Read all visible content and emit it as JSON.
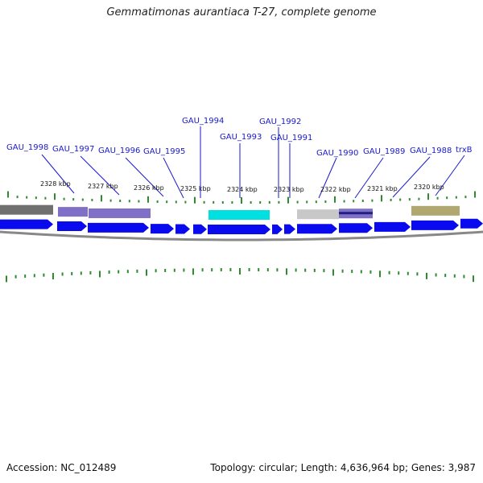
{
  "title": "Gemmatimonas aurantiaca T-27, complete genome",
  "footer": {
    "accession": "Accession: NC_012489",
    "summary": "Topology: circular; Length: 4,636,964 bp; Genes: 3,987"
  },
  "colors": {
    "gene_arrow": "#0a0aee",
    "backbone": "#888888",
    "tick": "#2e8b2e",
    "gene_label": "#1a1acc",
    "feature_gray": "#707070",
    "feature_purple": "#8070c8",
    "feature_cyan": "#00e0e0",
    "feature_lightgray": "#c8c8c8",
    "feature_navy": "#202080",
    "feature_olive": "#b0a870"
  },
  "kbp_labels": [
    "2328 kbp",
    "2327 kbp",
    "2326 kbp",
    "2325 kbp",
    "2324 kbp",
    "2323 kbp",
    "2322 kbp",
    "2321 kbp",
    "2320 kbp"
  ],
  "gene_labels": [
    "GAU_1998",
    "GAU_1997",
    "GAU_1996",
    "GAU_1995",
    "GAU_1994",
    "GAU_1993",
    "GAU_1992",
    "GAU_1991",
    "GAU_1990",
    "GAU_1989",
    "GAU_1988",
    "trxB"
  ]
}
